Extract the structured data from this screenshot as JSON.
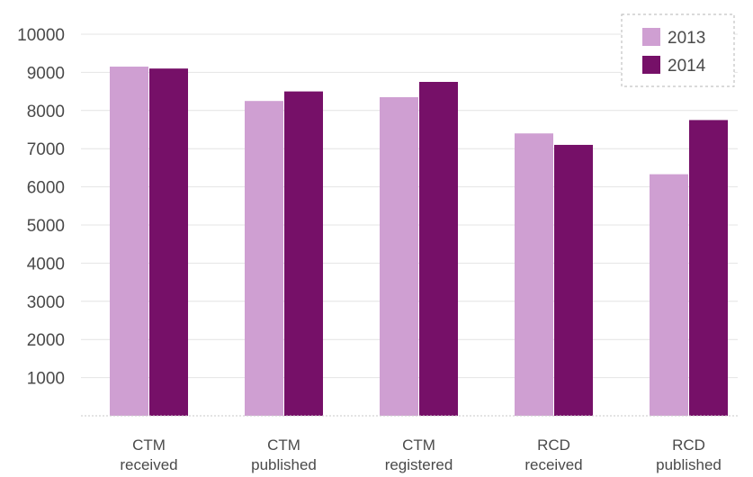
{
  "chart_data": {
    "type": "bar",
    "categories": [
      [
        "CTM",
        "received"
      ],
      [
        "CTM",
        "published"
      ],
      [
        "CTM",
        "registered"
      ],
      [
        "RCD",
        "received"
      ],
      [
        "RCD",
        "published"
      ]
    ],
    "series": [
      {
        "name": "2013",
        "color": "#cf9fd2",
        "values": [
          9150,
          8250,
          8350,
          7400,
          6330
        ]
      },
      {
        "name": "2014",
        "color": "#761068",
        "values": [
          9100,
          8500,
          8750,
          7100,
          7750
        ]
      }
    ],
    "y_ticks": [
      "1000",
      "2000",
      "3000",
      "4000",
      "5000",
      "6000",
      "7000",
      "8000",
      "9000",
      "10000"
    ],
    "ylim": [
      0,
      10000
    ],
    "grid": true,
    "legend_position": "top-right",
    "title": "",
    "xlabel": "",
    "ylabel": ""
  }
}
